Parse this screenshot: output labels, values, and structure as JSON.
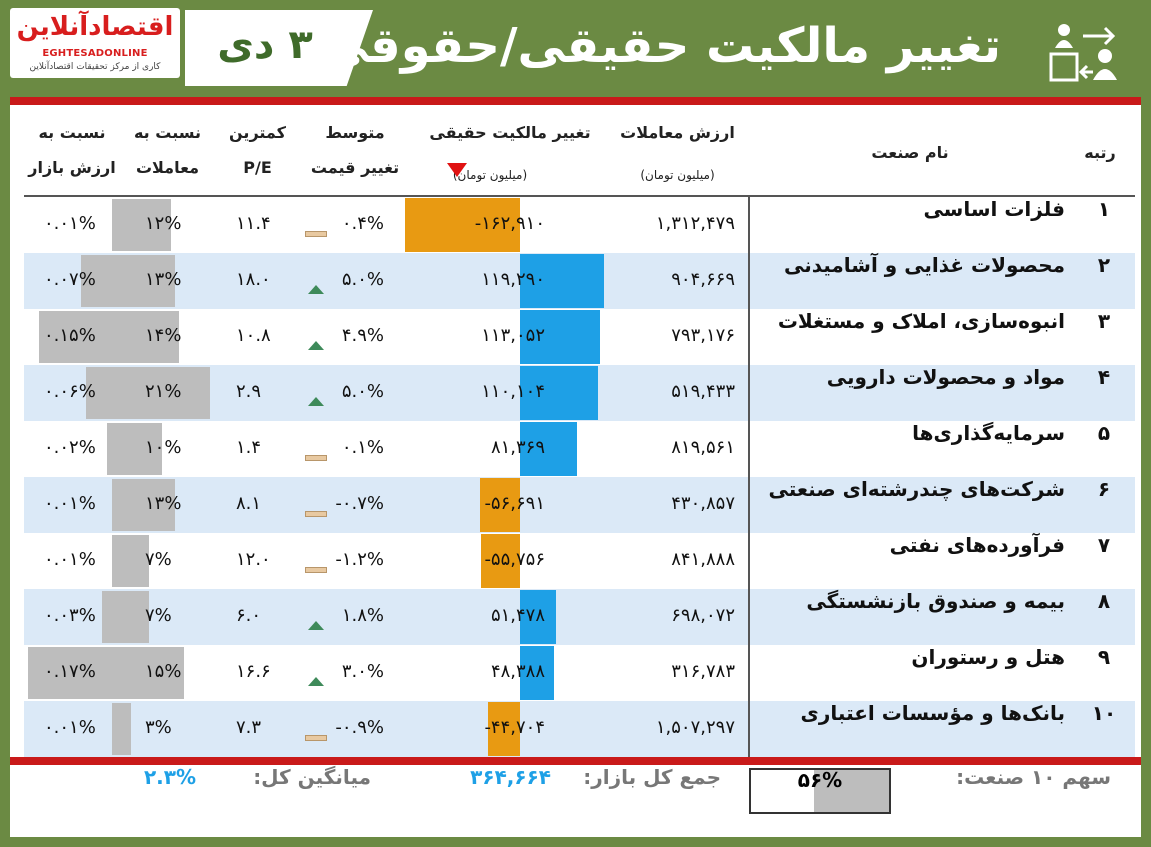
{
  "header": {
    "logo_brand": "اقتصادآنلاین",
    "logo_latin": "EGHTESADONLINE",
    "logo_sub": "کاری از مرکز تحقیقات اقتصادآنلاین",
    "date": "۳ دی",
    "title": "تغییر مالکیت حقیقی/حقوقی",
    "icon": "ownership-transfer-icon"
  },
  "columns": {
    "rank": "رتبه",
    "industry": "نام صنعت",
    "trade_value": "ارزش معاملات",
    "trade_value_unit": "(میلیون تومان)",
    "ownership_change": "تغییر مالکیت حقیقی",
    "ownership_change_unit": "(میلیون تومان)",
    "avg_change_l1": "متوسط",
    "avg_change_l2": "تغییر قیمت",
    "pe_l1": "کمترین",
    "pe_l2": "P/E",
    "trade_ratio_l1": "نسبت به",
    "trade_ratio_l2": "معاملات",
    "market_ratio_l1": "نسبت به",
    "market_ratio_l2": "ارزش بازار"
  },
  "chart_data": {
    "type": "table",
    "sorted_by": "ownership_change",
    "sort_direction": "down",
    "colors": {
      "positive": "#1ea0e6",
      "negative": "#e89a12",
      "ratio": "#bdbdbd",
      "up": "#3e8a5a",
      "flat": "#e8c9a1"
    },
    "rows": [
      {
        "rank": "۱",
        "name": "فلزات اساسی",
        "trade_value": "۱,۳۱۲,۴۷۹",
        "change_label": "-۱۶۲,۹۱۰",
        "change": -162910,
        "price_change_label": "۰.۴%",
        "trend": "flat",
        "pe": "۱۱.۴",
        "trade_ratio_label": "۱۲%",
        "trade_ratio": 0.12,
        "market_ratio_label": "۰.۰۱%",
        "market_ratio": 0.0001
      },
      {
        "rank": "۲",
        "name": "محصولات غذایی و آشامیدنی",
        "trade_value": "۹۰۴,۶۶۹",
        "change_label": "۱۱۹,۲۹۰",
        "change": 119290,
        "price_change_label": "۵.۰%",
        "trend": "up",
        "pe": "۱۸.۰",
        "trade_ratio_label": "۱۳%",
        "trade_ratio": 0.13,
        "market_ratio_label": "۰.۰۷%",
        "market_ratio": 0.0007
      },
      {
        "rank": "۳",
        "name": "انبوه‌سازی، املاک و مستغلات",
        "trade_value": "۷۹۳,۱۷۶",
        "change_label": "۱۱۳,۰۵۲",
        "change": 113052,
        "price_change_label": "۴.۹%",
        "trend": "up",
        "pe": "۱۰.۸",
        "trade_ratio_label": "۱۴%",
        "trade_ratio": 0.14,
        "market_ratio_label": "۰.۱۵%",
        "market_ratio": 0.0015
      },
      {
        "rank": "۴",
        "name": "مواد و محصولات دارویی",
        "trade_value": "۵۱۹,۴۳۳",
        "change_label": "۱۱۰,۱۰۴",
        "change": 110104,
        "price_change_label": "۵.۰%",
        "trend": "up",
        "pe": "۲.۹",
        "trade_ratio_label": "۲۱%",
        "trade_ratio": 0.21,
        "market_ratio_label": "۰.۰۶%",
        "market_ratio": 0.0006
      },
      {
        "rank": "۵",
        "name": "سرمایه‌گذاری‌ها",
        "trade_value": "۸۱۹,۵۶۱",
        "change_label": "۸۱,۳۶۹",
        "change": 81369,
        "price_change_label": "۰.۱%",
        "trend": "flat",
        "pe": "۱.۴",
        "trade_ratio_label": "۱۰%",
        "trade_ratio": 0.1,
        "market_ratio_label": "۰.۰۲%",
        "market_ratio": 0.0002
      },
      {
        "rank": "۶",
        "name": "شرکت‌های چندرشته‌ای صنعتی",
        "trade_value": "۴۳۰,۸۵۷",
        "change_label": "-۵۶,۶۹۱",
        "change": -56691,
        "price_change_label": "-۰.۷%",
        "trend": "flat",
        "pe": "۸.۱",
        "trade_ratio_label": "۱۳%",
        "trade_ratio": 0.13,
        "market_ratio_label": "۰.۰۱%",
        "market_ratio": 0.0001
      },
      {
        "rank": "۷",
        "name": "فرآورده‌های نفتی",
        "trade_value": "۸۴۱,۸۸۸",
        "change_label": "-۵۵,۷۵۶",
        "change": -55756,
        "price_change_label": "-۱.۲%",
        "trend": "flat",
        "pe": "۱۲.۰",
        "trade_ratio_label": "۷%",
        "trade_ratio": 0.07,
        "market_ratio_label": "۰.۰۱%",
        "market_ratio": 0.0001
      },
      {
        "rank": "۸",
        "name": "بیمه و صندوق بازنشستگی",
        "trade_value": "۶۹۸,۰۷۲",
        "change_label": "۵۱,۴۷۸",
        "change": 51478,
        "price_change_label": "۱.۸%",
        "trend": "up",
        "pe": "۶.۰",
        "trade_ratio_label": "۷%",
        "trade_ratio": 0.07,
        "market_ratio_label": "۰.۰۳%",
        "market_ratio": 0.0003
      },
      {
        "rank": "۹",
        "name": "هتل و رستوران",
        "trade_value": "۳۱۶,۷۸۳",
        "change_label": "۴۸,۳۸۸",
        "change": 48388,
        "price_change_label": "۳.۰%",
        "trend": "up",
        "pe": "۱۶.۶",
        "trade_ratio_label": "۱۵%",
        "trade_ratio": 0.15,
        "market_ratio_label": "۰.۱۷%",
        "market_ratio": 0.0017
      },
      {
        "rank": "۱۰",
        "name": "بانک‌ها و مؤسسات اعتباری",
        "trade_value": "۱,۵۰۷,۲۹۷",
        "change_label": "-۴۴,۷۰۴",
        "change": -44704,
        "price_change_label": "-۰.۹%",
        "trend": "flat",
        "pe": "۷.۳",
        "trade_ratio_label": "۳%",
        "trade_ratio": 0.03,
        "market_ratio_label": "۰.۰۱%",
        "market_ratio": 0.0001
      }
    ]
  },
  "footer": {
    "share_label": "سهم ۱۰ صنعت:",
    "share_value": "۵۶%",
    "share": 0.56,
    "total_label": "جمع کل بازار:",
    "total_value": "۳۶۴,۶۶۴",
    "avg_label": "میانگین کل:",
    "avg_value": "۲.۳%"
  }
}
